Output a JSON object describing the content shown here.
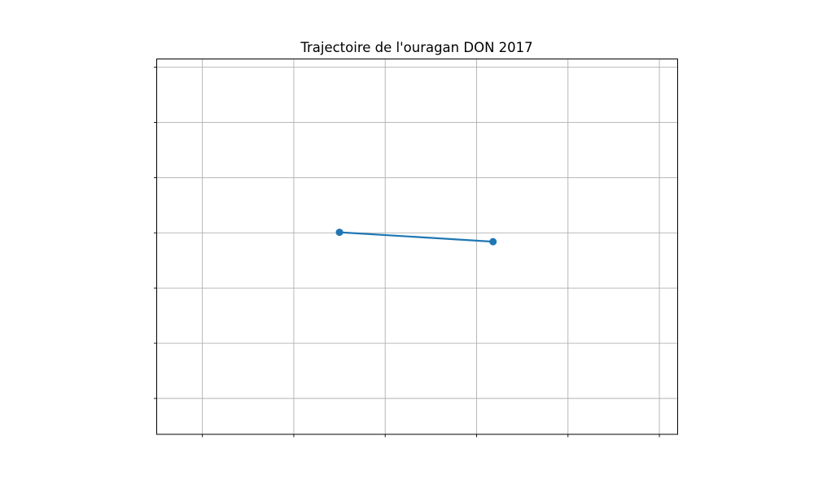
{
  "chart_data": {
    "type": "line",
    "title": "Trajectoire de l'ouragan DON 2017",
    "xlabel": "",
    "ylabel": "",
    "grid": true,
    "x_tick_labels_shown": false,
    "y_tick_labels_shown": false,
    "xlim": [
      0.0,
      5.7
    ],
    "ylim": [
      0.0,
      6.8
    ],
    "x_gridlines": [
      0.5,
      1.5,
      2.5,
      3.5,
      4.5,
      5.5
    ],
    "y_gridlines": [
      0.65,
      1.65,
      2.65,
      3.65,
      4.65,
      5.65,
      6.65
    ],
    "series": [
      {
        "color": "#1f77b4",
        "marker": "circle",
        "x": [
          2.0,
          3.68
        ],
        "y": [
          3.66,
          3.49
        ]
      }
    ]
  }
}
